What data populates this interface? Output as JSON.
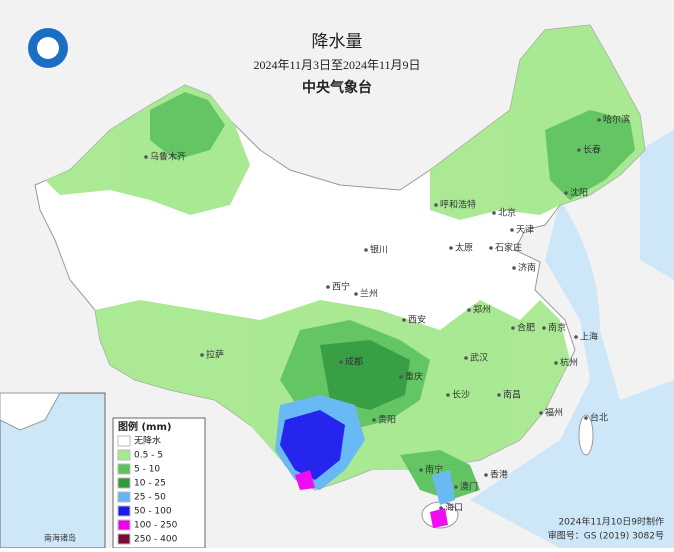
{
  "header": {
    "title": "降水量",
    "period": "2024年11月3日至2024年11月9日",
    "agency": "中央气象台"
  },
  "legend": {
    "title": "图例 (mm)",
    "items": [
      {
        "label": "无降水",
        "color": "#ffffff"
      },
      {
        "label": "0.5 - 5",
        "color": "#a6e88f"
      },
      {
        "label": "5 - 10",
        "color": "#5cc25c"
      },
      {
        "label": "10 - 25",
        "color": "#2e9a3a"
      },
      {
        "label": "25 - 50",
        "color": "#62b6f5"
      },
      {
        "label": "50 - 100",
        "color": "#1a1aee"
      },
      {
        "label": "100 - 250",
        "color": "#f000f0"
      },
      {
        "label": "250 - 400",
        "color": "#7a0a3a"
      }
    ]
  },
  "cities": [
    "乌鲁木齐",
    "哈尔滨",
    "长春",
    "沈阳",
    "呼和浩特",
    "北京",
    "天津",
    "银川",
    "太原",
    "石家庄",
    "济南",
    "西宁",
    "兰州",
    "郑州",
    "西安",
    "合肥",
    "南京",
    "上海",
    "拉萨",
    "成都",
    "武汉",
    "杭州",
    "重庆",
    "长沙",
    "南昌",
    "贵阳",
    "福州",
    "台北",
    "南宁",
    "香港",
    "澳门",
    "海口"
  ],
  "inset": {
    "label": "南海诸岛"
  },
  "footer": {
    "made": "2024年11月10日9时制作",
    "approval": "审图号：GS (2019) 3082号"
  }
}
